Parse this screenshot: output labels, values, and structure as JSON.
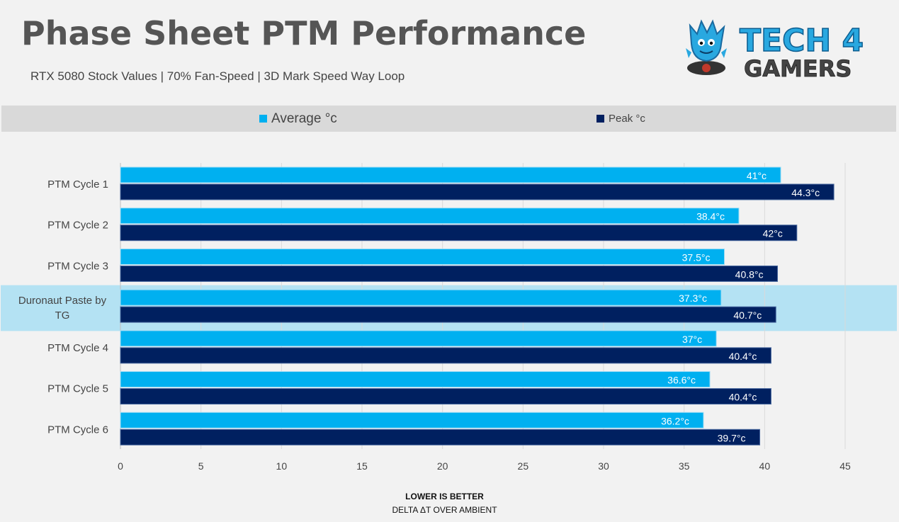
{
  "header": {
    "title": "Phase Sheet PTM Performance",
    "subtitle": "RTX 5080 Stock Values | 70% Fan-Speed | 3D Mark Speed Way Loop"
  },
  "logo": {
    "line1": "TECH 4",
    "line2": "GAMERS",
    "icon": "mascot-icon"
  },
  "colors": {
    "average": "#00b0f0",
    "peak": "#002060",
    "highlight": "#b4e2f3",
    "background": "#f2f2f2"
  },
  "chart_data": {
    "type": "bar",
    "orientation": "horizontal",
    "categories": [
      "PTM Cycle 1",
      "PTM Cycle 2",
      "PTM Cycle 3",
      "Duronaut Paste by TG",
      "PTM Cycle 4",
      "PTM Cycle 5",
      "PTM Cycle 6"
    ],
    "highlighted_category": "Duronaut Paste by TG",
    "series": [
      {
        "name": "Average °c",
        "values": [
          41,
          38.4,
          37.5,
          37.3,
          37,
          36.6,
          36.2
        ],
        "labels": [
          "41°c",
          "38.4°c",
          "37.5°c",
          "37.3°c",
          "37°c",
          "36.6°c",
          "36.2°c"
        ]
      },
      {
        "name": "Peak °c",
        "values": [
          44.3,
          42,
          40.8,
          40.7,
          40.4,
          40.4,
          39.7
        ],
        "labels": [
          "44.3°c",
          "42°c",
          "40.8°c",
          "40.7°c",
          "40.4°c",
          "40.4°c",
          "39.7°c"
        ]
      }
    ],
    "xlim": [
      0,
      45
    ],
    "xticks": [
      0,
      5,
      10,
      15,
      20,
      25,
      30,
      35,
      40,
      45
    ],
    "xlabel": "LOWER IS BETTER",
    "xlabel2": "DELTA ΔT OVER AMBIENT",
    "ylabel": "",
    "grid": "vertical",
    "legend_position": "top"
  }
}
